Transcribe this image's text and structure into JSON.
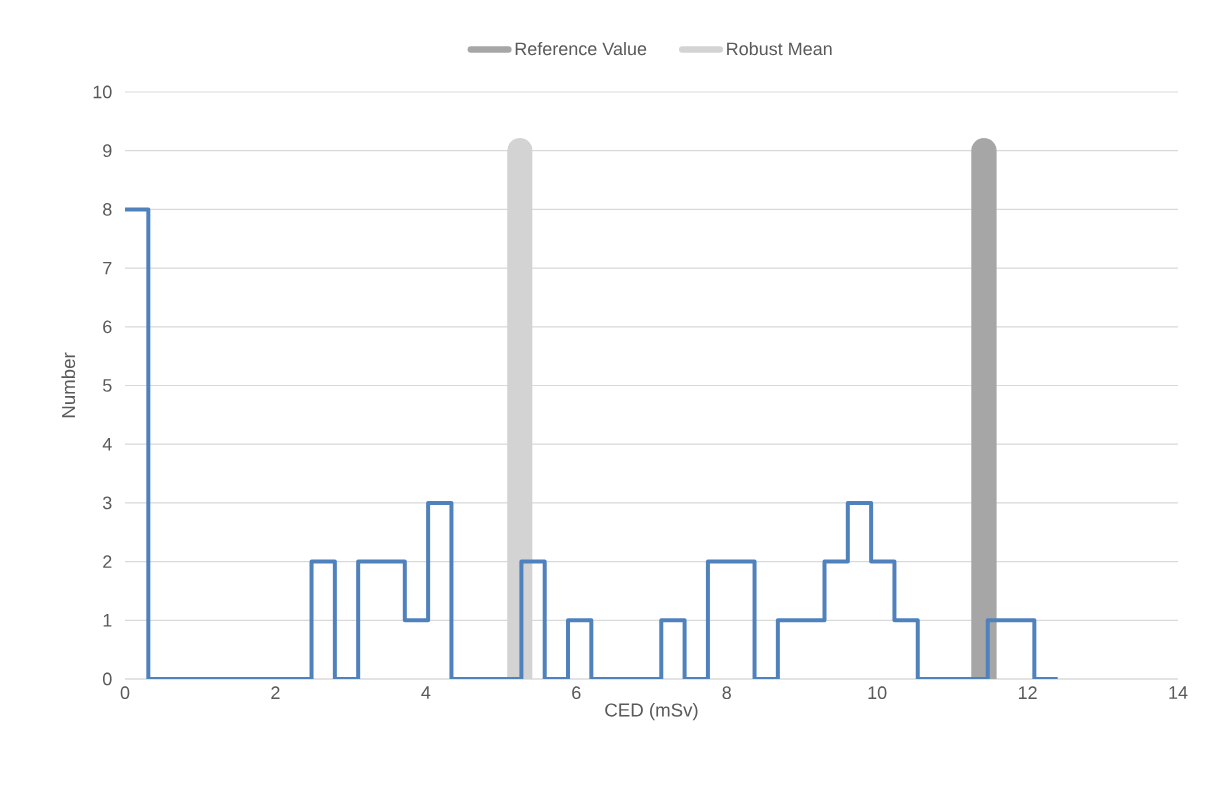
{
  "chart_data": {
    "type": "step",
    "xlabel": "CED (mSv)",
    "ylabel": "Number",
    "xlim": [
      0,
      14
    ],
    "xticks": [
      0,
      2,
      4,
      6,
      8,
      10,
      12,
      14
    ],
    "ylim": [
      0,
      10
    ],
    "yticks": [
      0,
      1,
      2,
      3,
      4,
      5,
      6,
      7,
      8,
      9,
      10
    ],
    "grid": "y",
    "legend": "top",
    "series": [
      {
        "type": "line",
        "name": "Reference Value",
        "color": "#a6a6a6",
        "x": [
          11.42,
          11.42
        ],
        "values": [
          0,
          9
        ]
      },
      {
        "type": "line",
        "name": "Robust Mean",
        "color": "#d3d3d3",
        "x": [
          5.25,
          5.25
        ],
        "values": [
          0,
          9
        ]
      },
      {
        "color": "#4f81bd",
        "x": [
          0,
          0.31,
          2.48,
          2.79,
          3.1,
          3.72,
          4.03,
          4.34,
          5.27,
          5.58,
          5.89,
          6.2,
          7.13,
          7.44,
          7.75,
          8.37,
          8.68,
          9.3,
          9.61,
          9.92,
          10.23,
          10.54,
          11.47,
          12.09,
          12.4
        ],
        "values": [
          8,
          0,
          2,
          0,
          2,
          1,
          3,
          0,
          2,
          0,
          1,
          0,
          1,
          0,
          2,
          0,
          1,
          2,
          3,
          2,
          1,
          0,
          1,
          0,
          0
        ]
      }
    ]
  }
}
